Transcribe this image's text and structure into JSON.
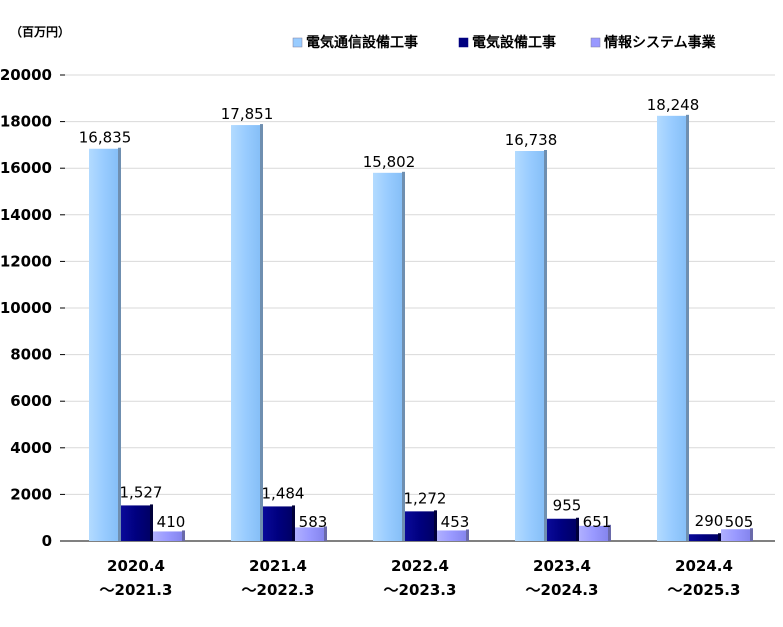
{
  "chart_data": {
    "type": "bar",
    "unit_label": "（百万円）",
    "categories": [
      [
        "2020.4",
        "～2021.3"
      ],
      [
        "2021.4",
        "～2022.3"
      ],
      [
        "2022.4",
        "～2023.3"
      ],
      [
        "2023.4",
        "～2024.3"
      ],
      [
        "2024.4",
        "～2025.3"
      ]
    ],
    "series": [
      {
        "name": "電気通信設備工事",
        "color": "#99ccff",
        "values": [
          16835,
          17851,
          15802,
          16738,
          18248
        ],
        "labels": [
          "16,835",
          "17,851",
          "15,802",
          "16,738",
          "18,248"
        ]
      },
      {
        "name": "電気設備工事",
        "color": "#000080",
        "values": [
          1527,
          1484,
          1272,
          955,
          290
        ],
        "labels": [
          "1,527",
          "1,484",
          "1,272",
          "955",
          "290"
        ]
      },
      {
        "name": "情報システム事業",
        "color": "#9999ff",
        "values": [
          410,
          583,
          453,
          651,
          505
        ],
        "labels": [
          "410",
          "583",
          "453",
          "651",
          "505"
        ]
      }
    ],
    "yticks": [
      "0",
      "2000",
      "4000",
      "6000",
      "8000",
      "10000",
      "12000",
      "14000",
      "16000",
      "18000",
      "20000"
    ],
    "ylim": [
      0,
      20000
    ],
    "grid": true,
    "legend_position": "top"
  }
}
